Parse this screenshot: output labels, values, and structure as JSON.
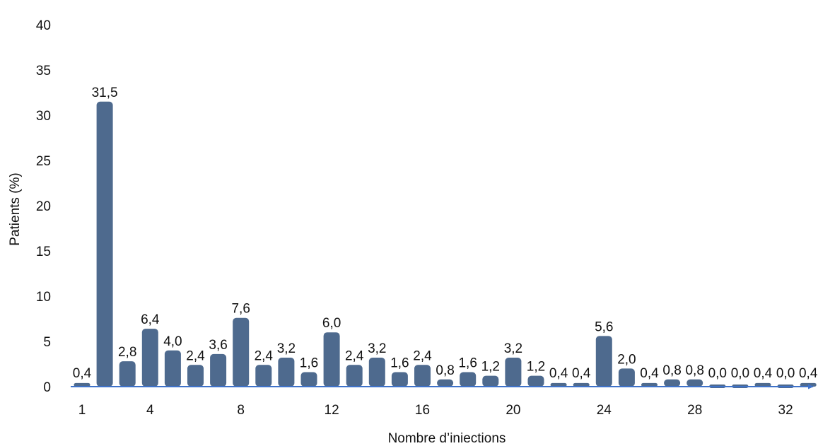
{
  "chart_data": {
    "type": "bar",
    "title": "",
    "xlabel": "Nombre d’iniections",
    "ylabel": "Patients (%)",
    "ylim": [
      0,
      40
    ],
    "yticks": [
      "0",
      "5",
      "10",
      "15",
      "20",
      "25",
      "30",
      "35",
      "40"
    ],
    "xticks": [
      {
        "x": 1,
        "label": "1"
      },
      {
        "x": 4,
        "label": "4"
      },
      {
        "x": 8,
        "label": "8"
      },
      {
        "x": 12,
        "label": "12"
      },
      {
        "x": 16,
        "label": "16"
      },
      {
        "x": 20,
        "label": "20"
      },
      {
        "x": 24,
        "label": "24"
      },
      {
        "x": 28,
        "label": "28"
      },
      {
        "x": 32,
        "label": "32"
      }
    ],
    "grid": false,
    "categories": [
      1,
      2,
      3,
      4,
      5,
      6,
      7,
      8,
      9,
      10,
      11,
      12,
      13,
      14,
      15,
      16,
      17,
      18,
      19,
      20,
      21,
      22,
      23,
      24,
      25,
      26,
      27,
      28,
      29,
      30,
      31,
      32,
      33
    ],
    "values": [
      0.4,
      31.5,
      2.8,
      6.4,
      4.0,
      2.4,
      3.6,
      7.6,
      2.4,
      3.2,
      1.6,
      6.0,
      2.4,
      3.2,
      1.6,
      2.4,
      0.8,
      1.6,
      1.2,
      3.2,
      1.2,
      0.4,
      0.4,
      5.6,
      2.0,
      0.4,
      0.8,
      0.8,
      0.0,
      0.0,
      0.4,
      0.0,
      0.4
    ],
    "data_labels": [
      "0,4",
      "31,5",
      "2,8",
      "6,4",
      "4,0",
      "2,4",
      "3,6",
      "7,6",
      "2,4",
      "3,2",
      "1,6",
      "6,0",
      "2,4",
      "3,2",
      "1,6",
      "2,4",
      "0,8",
      "1,6",
      "1,2",
      "3,2",
      "1,2",
      "0,4",
      "0,4",
      "5,6",
      "2,0",
      "0,4",
      "0,8",
      "0,8",
      "0,0",
      "0,0",
      "0,4",
      "0,0",
      "0,4"
    ],
    "bar_color": "#4e6a8e",
    "axis_color": "#3f72c9"
  }
}
